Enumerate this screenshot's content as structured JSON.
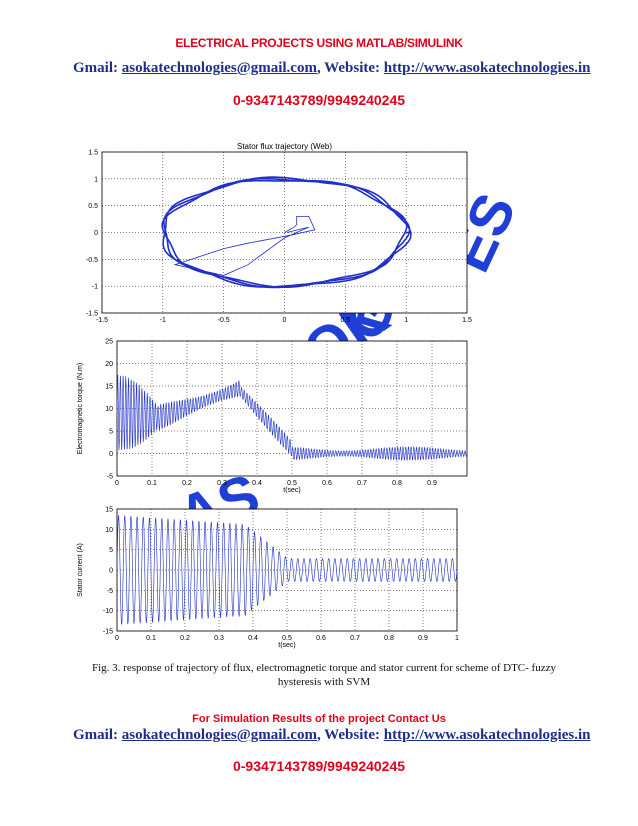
{
  "header": {
    "title": "ELECTRICAL PROJECTS USING MATLAB/SIMULINK",
    "gmail_label": "Gmail:",
    "email": "asokatechnologies@gmail.com",
    "website_label": ", Website:",
    "website": "http://www.asokatechnologies.in",
    "phone": "0-9347143789/9949240245"
  },
  "watermark": {
    "text": "ASOKA TECHNOLOGIES",
    "color": "#1f3fd6"
  },
  "chart_data": [
    {
      "type": "line",
      "title": "Stator flux trajectory (Web)",
      "xlabel": "",
      "ylabel": "",
      "xlim": [
        -1.5,
        1.5
      ],
      "ylim": [
        -1.5,
        1.5
      ],
      "x_ticks": [
        "-1.5",
        "-1",
        "-0.5",
        "0",
        "0.5",
        "1",
        "1.5"
      ],
      "y_ticks": [
        "1.5",
        "1",
        "0.5",
        "0",
        "-0.5",
        "-1",
        "-1.5"
      ],
      "grid": true,
      "line_color": "#1f2fc8",
      "series": [
        {
          "x": [
            0,
            0.08,
            0.1,
            0.1,
            0.2,
            0.25,
            0.05,
            -0.3,
            -0.5,
            -0.9,
            -0.5,
            -0.3,
            0.0,
            0.2,
            0.02
          ],
          "y": [
            0,
            0.1,
            0.15,
            0.3,
            0.3,
            0.05,
            -0.05,
            -0.2,
            -0.3,
            -0.6,
            -0.8,
            -0.6,
            -0.1,
            0.1,
            0.0
          ]
        }
      ],
      "circle_radius": 1.0
    },
    {
      "type": "line",
      "title": "",
      "xlabel": "t(sec)",
      "ylabel": "Electromagnetic torque (N.m)",
      "xlim": [
        0,
        1
      ],
      "ylim": [
        -5,
        25
      ],
      "x_ticks": [
        "0",
        "0.1",
        "0.2",
        "0.3",
        "0.4",
        "0.5",
        "0.6",
        "0.7",
        "0.8",
        "0.9"
      ],
      "y_ticks": [
        "25",
        "20",
        "15",
        "10",
        "5",
        "0",
        "-5"
      ],
      "grid": true,
      "line_color": "#1f2fc8"
    },
    {
      "type": "line",
      "title": "",
      "xlabel": "t(sec)",
      "ylabel": "Stator current (A)",
      "xlim": [
        0,
        1
      ],
      "ylim": [
        -15,
        15
      ],
      "x_ticks": [
        "0",
        "0.1",
        "0.2",
        "0.3",
        "0.4",
        "0.5",
        "0.6",
        "0.7",
        "0.8",
        "0.9",
        "1"
      ],
      "y_ticks": [
        "15",
        "10",
        "5",
        "0",
        "-5",
        "-10",
        "-15"
      ],
      "grid": true,
      "line_color": "#1f2fc8"
    }
  ],
  "caption": {
    "line1": "Fig. 3. response of trajectory of flux, electromagnetic torque and stator current for scheme of DTC- fuzzy",
    "line2": "hysteresis with SVM"
  },
  "footer": {
    "contact_us": "For Simulation Results of the project Contact Us",
    "gmail_label": "Gmail:",
    "email": "asokatechnologies@gmail.com",
    "website_label": ", Website:",
    "website": "http://www.asokatechnologies.in",
    "phone": "0-9347143789/9949240245"
  }
}
